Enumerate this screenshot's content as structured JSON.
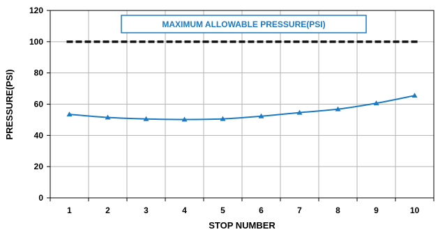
{
  "chart_data": {
    "type": "line",
    "xlabel": "STOP NUMBER",
    "ylabel": "PRESSURE(PSI)",
    "x": [
      1,
      2,
      3,
      4,
      5,
      6,
      7,
      8,
      9,
      10
    ],
    "xlim": [
      0.5,
      10.5
    ],
    "ylim": [
      0,
      120
    ],
    "yticks": [
      0,
      20,
      40,
      60,
      80,
      100,
      120
    ],
    "grid": true,
    "series": [
      {
        "name": "MAXIMUM ALLOWABLE PRESSURE(PSI)",
        "values": [
          100,
          100,
          100,
          100,
          100,
          100,
          100,
          100,
          100,
          100
        ],
        "style": "dashed",
        "color": "#111111"
      },
      {
        "values": [
          53.5,
          51.5,
          50.5,
          50.2,
          50.6,
          52.3,
          54.6,
          56.8,
          60.6,
          65.5
        ],
        "style": "solid",
        "marker": "triangle",
        "color": "#1a7ac4"
      }
    ],
    "legend": {
      "text": "MAXIMUM ALLOWABLE PRESSURE(PSI)",
      "placement": "top-center"
    }
  },
  "colors": {
    "accent": "#1a7ac4",
    "grid": "#b3b3b3",
    "axis": "#000000"
  }
}
